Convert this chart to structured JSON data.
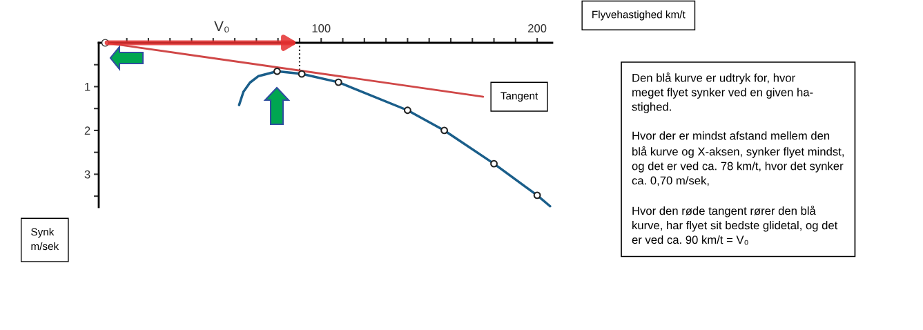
{
  "chart_data": {
    "type": "line",
    "xlabel": "Flyvehastighed km/t",
    "ylabel": "Synk\nm/sek",
    "xlim": [
      -3,
      207
    ],
    "ylim": [
      3.75,
      0
    ],
    "xticks": [
      {
        "value": 10,
        "label": null
      },
      {
        "value": 20,
        "label": null
      },
      {
        "value": 30,
        "label": null
      },
      {
        "value": 40,
        "label": null
      },
      {
        "value": 50,
        "label": null
      },
      {
        "value": 60,
        "label": null
      },
      {
        "value": 70,
        "label": null
      },
      {
        "value": 80,
        "label": null
      },
      {
        "value": 90,
        "label": null
      },
      100,
      {
        "value": 110,
        "label": null
      },
      {
        "value": 120,
        "label": null
      },
      {
        "value": 130,
        "label": null
      },
      {
        "value": 140,
        "label": null
      },
      {
        "value": 150,
        "label": null
      },
      {
        "value": 160,
        "label": null
      },
      {
        "value": 170,
        "label": null
      },
      {
        "value": 180,
        "label": null
      },
      {
        "value": 190,
        "label": null
      },
      200
    ],
    "yticks": [
      {
        "value": 0.5,
        "label": null
      },
      1,
      {
        "value": 1.5,
        "label": null
      },
      2,
      {
        "value": 2.5,
        "label": null
      },
      3,
      {
        "value": 3.5,
        "label": null
      }
    ],
    "series": [
      {
        "color": "#1a5e8a",
        "marker": "none",
        "x": [
          62,
          64,
          67,
          71,
          79.6,
          91,
          108,
          140,
          157,
          180,
          200,
          206
        ],
        "values": [
          1.42,
          1.12,
          0.91,
          0.76,
          0.65,
          0.71,
          0.9,
          1.54,
          2.0,
          2.76,
          3.48,
          3.73
        ]
      },
      {
        "type": "scatter",
        "color": "#222222",
        "marker": "circle",
        "x": [
          79.6,
          91,
          108,
          140,
          157,
          180,
          200
        ],
        "values": [
          0.65,
          0.71,
          0.9,
          1.54,
          2.0,
          2.76,
          3.48
        ]
      },
      {
        "color": "#d04848",
        "marker": "circle",
        "x": [
          0,
          175
        ],
        "values": [
          0,
          1.23
        ]
      }
    ],
    "ref_lines": [
      {
        "axis": "x",
        "value": 90,
        "label": null,
        "color": "#222222",
        "line_style": "dotted"
      }
    ],
    "annotations": [
      "V₀",
      {
        "text": "Tangent",
        "x": 175,
        "y": 1.23
      },
      "Den blå kurve er udtryk for, hvor\nmeget flyet synker ved en given ha-\nstighed.\n\nHvor der er mindst afstand mellem den\nblå kurve og X-aksen, synker flyet mindst,\nog det er ved ca. 78 km/t, hvor det synker\nca. 0,70 m/sek,\n\nHvor den røde tangent rører den blå\nkurve, har flyet sit bedste glidetal, og det\ner ved ca. 90 km/t = V₀"
    ],
    "grid": false,
    "legend": false
  }
}
